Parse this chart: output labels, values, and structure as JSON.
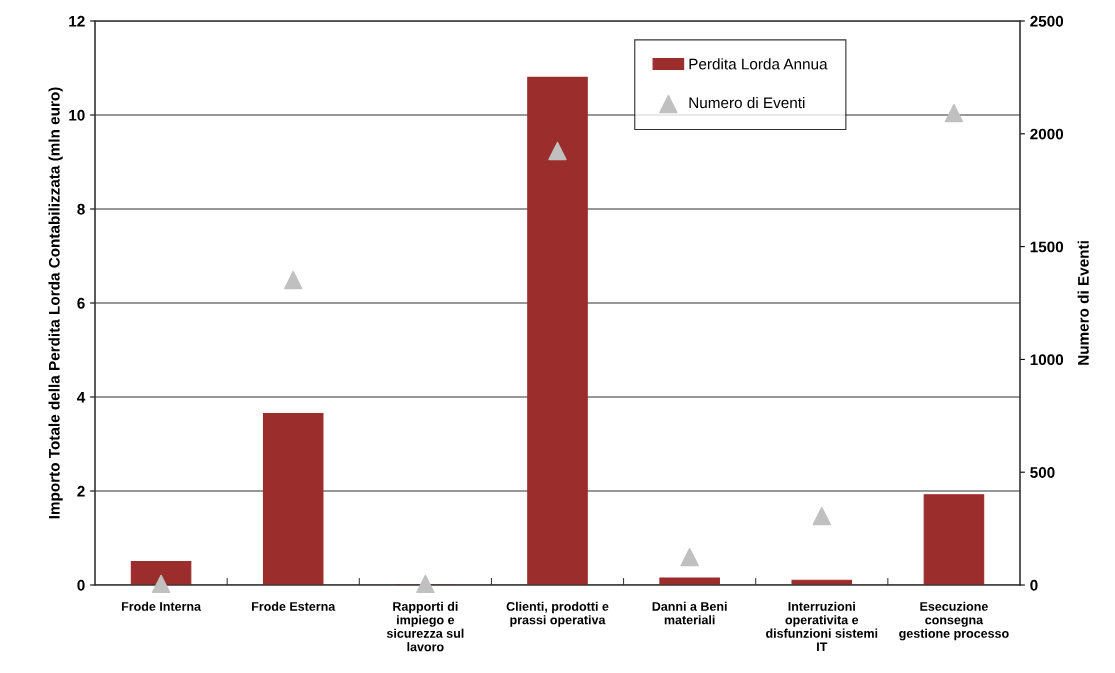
{
  "chart_data": {
    "type": "bar",
    "categories": [
      "Frode Interna",
      "Frode Esterna",
      "Rapporti di\nimpiego e\nsicurezza sul\nlavoro",
      "Clienti, prodotti e\nprassi operativa",
      "Danni a Beni\nmateriali",
      "Interruzioni\noperativita e\ndisfunzioni sistemi\nIT",
      "Esecuzione\nconsegna\ngestione processo"
    ],
    "ylabel": "Importo Totale della Perdita Lorda Contabilizzata (mln euro)",
    "y2label": "Numero di Eventi",
    "series": [
      {
        "name": "Perdita Lorda Annua",
        "color": "#9b2d2d",
        "values": [
          0.5,
          3.65,
          0,
          10.8,
          0.15,
          0.1,
          1.92
        ]
      },
      {
        "name": "Numero di Eventi",
        "type": "scatter",
        "axis": "y2",
        "marker": "triangle",
        "color": "#c0c0c0",
        "values": [
          5,
          1352,
          5,
          1924,
          124,
          306,
          2092
        ]
      }
    ],
    "ylim": [
      0,
      12
    ],
    "yticks": [
      0,
      2,
      4,
      6,
      8,
      10,
      12
    ],
    "y2lim": [
      0,
      2500
    ],
    "y2ticks": [
      0,
      500,
      1000,
      1500,
      2000,
      2500
    ],
    "grid": "y",
    "legend": "top right"
  }
}
